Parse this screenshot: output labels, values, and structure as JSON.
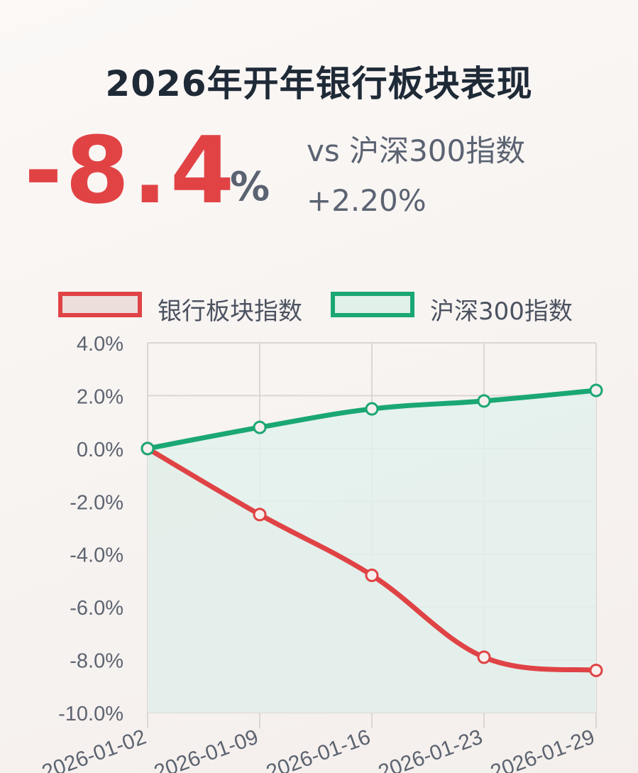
{
  "header": {
    "title": "2026年开年银行板块表现",
    "big_value": "-8.4",
    "big_unit": "%",
    "compare_label": "vs 沪深300指数",
    "compare_value": "+2.20%"
  },
  "colors": {
    "bank": "#e04345",
    "csi300": "#1aa774",
    "bank_fill": "#e8dcd9",
    "csi300_fill": "#e3f1ec",
    "grid": "#dcd6d4",
    "tick_text": "#5d6470"
  },
  "chart_data": {
    "type": "line",
    "title": "2026年开年银行板块表现",
    "x": [
      "2026-01-02",
      "2026-01-09",
      "2026-01-16",
      "2026-01-23",
      "2026-01-29"
    ],
    "x_tick_labels": [
      "2026-01-02",
      "2026-01-09",
      "2026-01-16",
      "2026-01-23",
      "2026-01-29"
    ],
    "y_tick_labels": [
      "4.0%",
      "2.0%",
      "0.0%",
      "-2.0%",
      "-4.0%",
      "-6.0%",
      "-8.0%",
      "-10.0%"
    ],
    "ylim": [
      -10,
      4
    ],
    "ytick_step": 2,
    "grid": true,
    "legend_position": "top",
    "series": [
      {
        "name": "银行板块指数",
        "values": [
          0.0,
          -2.5,
          -4.8,
          -7.9,
          -8.4
        ],
        "color": "#e04345",
        "fill": true
      },
      {
        "name": "沪深300指数",
        "values": [
          0.0,
          0.8,
          1.5,
          1.8,
          2.2
        ],
        "color": "#1aa774",
        "fill": true
      }
    ]
  }
}
